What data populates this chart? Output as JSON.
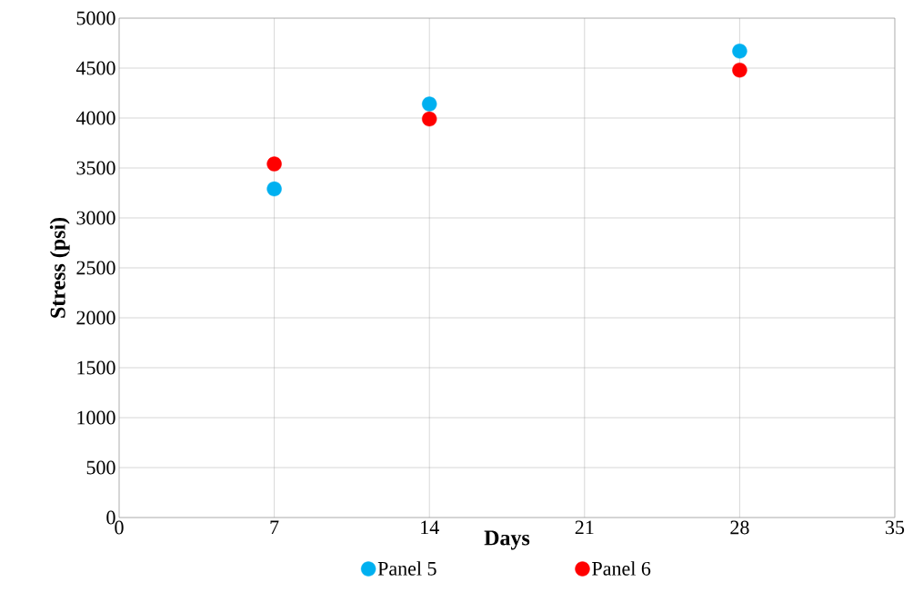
{
  "chart_data": {
    "type": "scatter",
    "xlabel": "Days",
    "ylabel": "Stress (psi)",
    "x": [
      7,
      14,
      28
    ],
    "series": [
      {
        "name": "Panel 5",
        "color": "#00b0f0",
        "values": [
          3290,
          4140,
          4670
        ]
      },
      {
        "name": "Panel 6",
        "color": "#ff0000",
        "values": [
          3540,
          3990,
          4480
        ]
      }
    ],
    "xlim": [
      0,
      35
    ],
    "xticks": [
      0,
      7,
      14,
      21,
      28,
      35
    ],
    "ylim": [
      0,
      5000
    ],
    "yticks": [
      0,
      500,
      1000,
      1500,
      2000,
      2500,
      3000,
      3500,
      4000,
      4500,
      5000
    ],
    "grid": true,
    "legend": "bottom",
    "marker": "circle"
  }
}
